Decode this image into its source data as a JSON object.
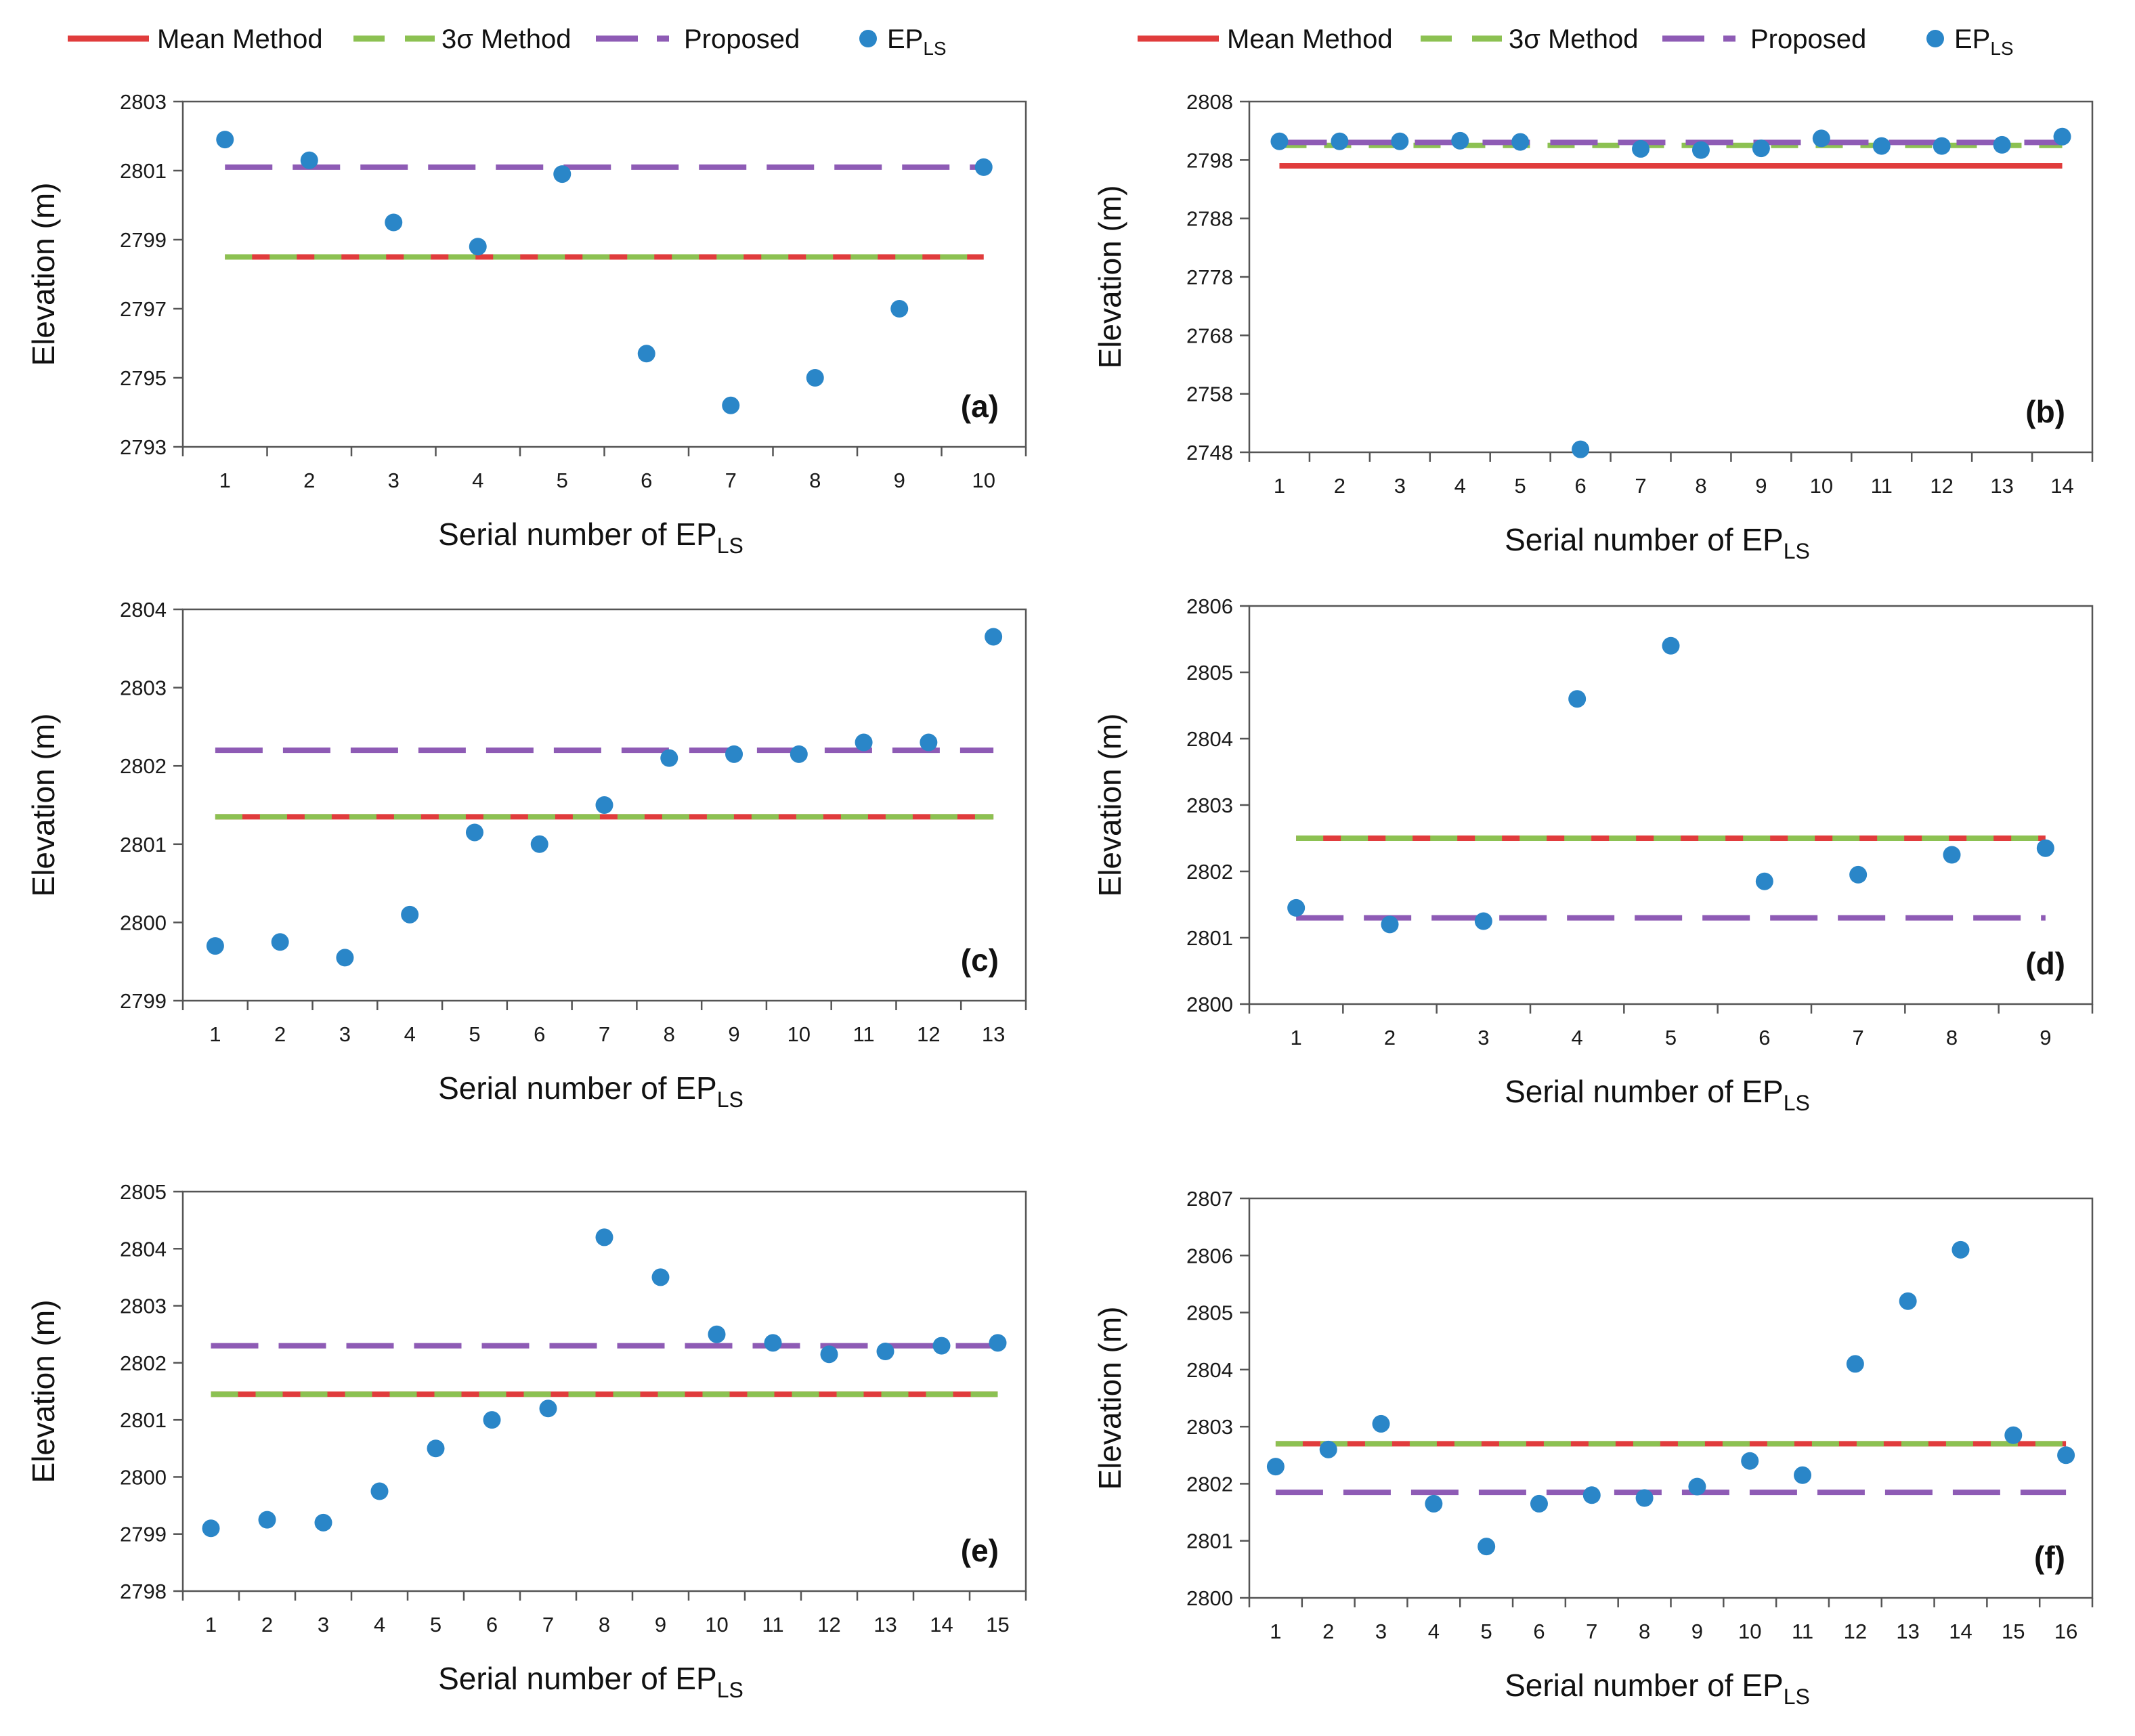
{
  "legend": {
    "mean": "Mean Method",
    "sigma": "3σ Method",
    "proposed": "Proposed",
    "ep": "EP",
    "ep_sub": "LS"
  },
  "colors": {
    "mean": "#e03c3c",
    "sigma": "#8cc152",
    "proposed": "#8e5bb5",
    "point": "#2a86c8",
    "frame": "#555555"
  },
  "chart_data": [
    {
      "type": "scatter",
      "tag": "(a)",
      "ylabel": "Elevation (m)",
      "xlabel": "Serial number of EP",
      "xlabel_sub": "LS",
      "ylim": [
        2793,
        2803
      ],
      "yticks": [
        2793,
        2795,
        2797,
        2799,
        2801,
        2803
      ],
      "x": [
        1,
        2,
        3,
        4,
        5,
        6,
        7,
        8,
        9,
        10
      ],
      "values": [
        2801.9,
        2801.3,
        2799.5,
        2798.8,
        2800.9,
        2795.7,
        2794.2,
        2795.0,
        2797.0,
        2801.1
      ],
      "mean": 2798.5,
      "sigma": 2798.5,
      "proposed": 2801.1
    },
    {
      "type": "scatter",
      "tag": "(b)",
      "ylabel": "Elevation (m)",
      "xlabel": "Serial number of EP",
      "xlabel_sub": "LS",
      "ylim": [
        2748,
        2808
      ],
      "yticks": [
        2748,
        2758,
        2768,
        2778,
        2788,
        2798,
        2808
      ],
      "x": [
        1,
        2,
        3,
        4,
        5,
        6,
        7,
        8,
        9,
        10,
        11,
        12,
        13,
        14
      ],
      "values": [
        2801.2,
        2801.2,
        2801.2,
        2801.3,
        2801.1,
        2748.5,
        2799.9,
        2799.7,
        2800.0,
        2801.7,
        2800.4,
        2800.4,
        2800.6,
        2802.0
      ],
      "mean": 2797.0,
      "sigma": 2800.5,
      "proposed": 2801.0
    },
    {
      "type": "scatter",
      "tag": "(c)",
      "ylabel": "Elevation (m)",
      "xlabel": "Serial number of EP",
      "xlabel_sub": "LS",
      "ylim": [
        2799,
        2804
      ],
      "yticks": [
        2799,
        2800,
        2801,
        2802,
        2803,
        2804
      ],
      "x": [
        1,
        2,
        3,
        4,
        5,
        6,
        7,
        8,
        9,
        10,
        11,
        12,
        13
      ],
      "values": [
        2799.7,
        2799.75,
        2799.55,
        2800.1,
        2801.15,
        2801.0,
        2801.5,
        2802.1,
        2802.15,
        2802.15,
        2802.3,
        2802.3,
        2803.65
      ],
      "mean": 2801.35,
      "sigma": 2801.35,
      "proposed": 2802.2
    },
    {
      "type": "scatter",
      "tag": "(d)",
      "ylabel": "Elevation (m)",
      "xlabel": "Serial number of EP",
      "xlabel_sub": "LS",
      "ylim": [
        2800,
        2806
      ],
      "yticks": [
        2800,
        2801,
        2802,
        2803,
        2804,
        2805,
        2806
      ],
      "x": [
        1,
        2,
        3,
        4,
        5,
        6,
        7,
        8,
        9
      ],
      "values": [
        2801.45,
        2801.2,
        2801.25,
        2804.6,
        2805.4,
        2801.85,
        2801.95,
        2802.25,
        2802.35
      ],
      "mean": 2802.5,
      "sigma": 2802.5,
      "proposed": 2801.3
    },
    {
      "type": "scatter",
      "tag": "(e)",
      "ylabel": "Elevation (m)",
      "xlabel": "Serial number of EP",
      "xlabel_sub": "LS",
      "ylim": [
        2798,
        2805
      ],
      "yticks": [
        2798,
        2799,
        2800,
        2801,
        2802,
        2803,
        2804,
        2805
      ],
      "x": [
        1,
        2,
        3,
        4,
        5,
        6,
        7,
        8,
        9,
        10,
        11,
        12,
        13,
        14,
        15
      ],
      "values": [
        2799.1,
        2799.25,
        2799.2,
        2799.75,
        2800.5,
        2801.0,
        2801.2,
        2804.2,
        2803.5,
        2802.5,
        2802.35,
        2802.15,
        2802.2,
        2802.3,
        2802.35
      ],
      "mean": 2801.45,
      "sigma": 2801.45,
      "proposed": 2802.3
    },
    {
      "type": "scatter",
      "tag": "(f)",
      "ylabel": "Elevation (m)",
      "xlabel": "Serial number of EP",
      "xlabel_sub": "LS",
      "ylim": [
        2800,
        2807
      ],
      "yticks": [
        2800,
        2801,
        2802,
        2803,
        2804,
        2805,
        2806,
        2807
      ],
      "x": [
        1,
        2,
        3,
        4,
        5,
        6,
        7,
        8,
        9,
        10,
        11,
        12,
        13,
        14,
        15,
        16
      ],
      "values": [
        2802.3,
        2802.6,
        2803.05,
        2801.65,
        2800.9,
        2801.65,
        2801.8,
        2801.75,
        2801.95,
        2802.4,
        2802.15,
        2804.1,
        2805.2,
        2806.1,
        2802.85,
        2802.5
      ],
      "mean": 2802.7,
      "sigma": 2802.7,
      "proposed": 2801.85
    }
  ]
}
